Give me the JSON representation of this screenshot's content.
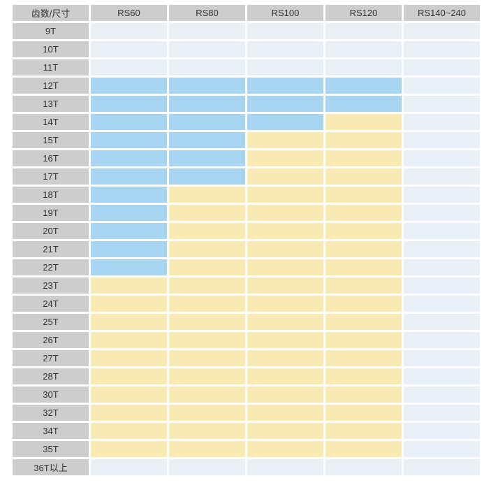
{
  "colors": {
    "header_bg": "#cdcdcd",
    "label_bg": "#cdcdcd",
    "cell_empty": "#e9eff6",
    "cell_blue": "#a7d5f2",
    "cell_yellow": "#f9e9b2",
    "text": "#333333",
    "gap": "#ffffff"
  },
  "chart_data": {
    "type": "table",
    "columns": [
      "齿数/尺寸",
      "RS60",
      "RS80",
      "RS100",
      "RS120",
      "RS140~240"
    ],
    "cell_states": [
      "empty",
      "blue",
      "yellow"
    ],
    "rows": [
      {
        "label": "9T",
        "cells": [
          "empty",
          "empty",
          "empty",
          "empty",
          "empty"
        ]
      },
      {
        "label": "10T",
        "cells": [
          "empty",
          "empty",
          "empty",
          "empty",
          "empty"
        ]
      },
      {
        "label": "11T",
        "cells": [
          "empty",
          "empty",
          "empty",
          "empty",
          "empty"
        ]
      },
      {
        "label": "12T",
        "cells": [
          "blue",
          "blue",
          "blue",
          "blue",
          "empty"
        ]
      },
      {
        "label": "13T",
        "cells": [
          "blue",
          "blue",
          "blue",
          "blue",
          "empty"
        ]
      },
      {
        "label": "14T",
        "cells": [
          "blue",
          "blue",
          "blue",
          "yellow",
          "empty"
        ]
      },
      {
        "label": "15T",
        "cells": [
          "blue",
          "blue",
          "yellow",
          "yellow",
          "empty"
        ]
      },
      {
        "label": "16T",
        "cells": [
          "blue",
          "blue",
          "yellow",
          "yellow",
          "empty"
        ]
      },
      {
        "label": "17T",
        "cells": [
          "blue",
          "blue",
          "yellow",
          "yellow",
          "empty"
        ]
      },
      {
        "label": "18T",
        "cells": [
          "blue",
          "yellow",
          "yellow",
          "yellow",
          "empty"
        ]
      },
      {
        "label": "19T",
        "cells": [
          "blue",
          "yellow",
          "yellow",
          "yellow",
          "empty"
        ]
      },
      {
        "label": "20T",
        "cells": [
          "blue",
          "yellow",
          "yellow",
          "yellow",
          "empty"
        ]
      },
      {
        "label": "21T",
        "cells": [
          "blue",
          "yellow",
          "yellow",
          "yellow",
          "empty"
        ]
      },
      {
        "label": "22T",
        "cells": [
          "blue",
          "yellow",
          "yellow",
          "yellow",
          "empty"
        ]
      },
      {
        "label": "23T",
        "cells": [
          "yellow",
          "yellow",
          "yellow",
          "yellow",
          "empty"
        ]
      },
      {
        "label": "24T",
        "cells": [
          "yellow",
          "yellow",
          "yellow",
          "yellow",
          "empty"
        ]
      },
      {
        "label": "25T",
        "cells": [
          "yellow",
          "yellow",
          "yellow",
          "yellow",
          "empty"
        ]
      },
      {
        "label": "26T",
        "cells": [
          "yellow",
          "yellow",
          "yellow",
          "yellow",
          "empty"
        ]
      },
      {
        "label": "27T",
        "cells": [
          "yellow",
          "yellow",
          "yellow",
          "yellow",
          "empty"
        ]
      },
      {
        "label": "28T",
        "cells": [
          "yellow",
          "yellow",
          "yellow",
          "yellow",
          "empty"
        ]
      },
      {
        "label": "30T",
        "cells": [
          "yellow",
          "yellow",
          "yellow",
          "yellow",
          "empty"
        ]
      },
      {
        "label": "32T",
        "cells": [
          "yellow",
          "yellow",
          "yellow",
          "yellow",
          "empty"
        ]
      },
      {
        "label": "34T",
        "cells": [
          "yellow",
          "yellow",
          "yellow",
          "yellow",
          "empty"
        ]
      },
      {
        "label": "35T",
        "cells": [
          "yellow",
          "yellow",
          "yellow",
          "yellow",
          "empty"
        ]
      },
      {
        "label": "36T以上",
        "cells": [
          "empty",
          "empty",
          "empty",
          "empty",
          "empty"
        ]
      }
    ]
  }
}
